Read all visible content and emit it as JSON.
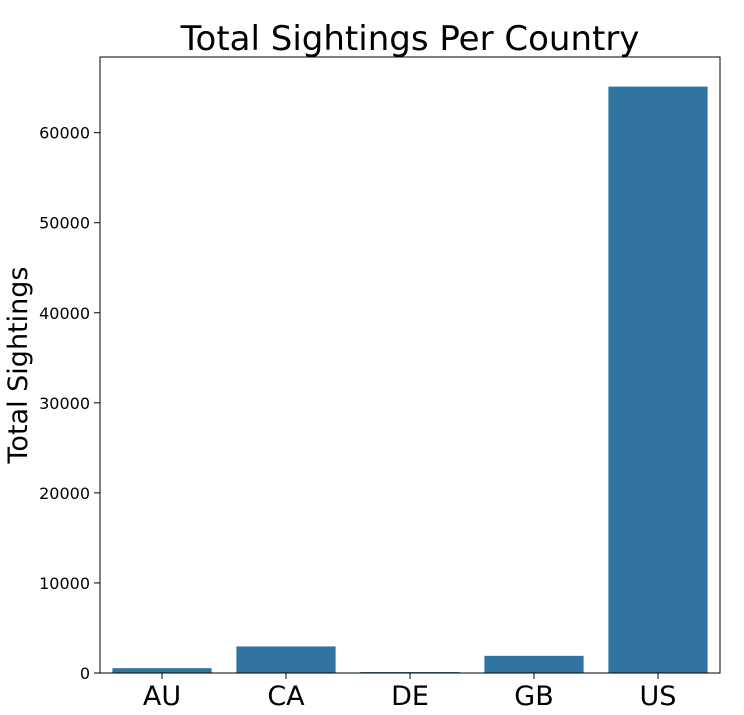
{
  "chart_data": {
    "type": "bar",
    "title": "Total Sightings Per Country",
    "xlabel": "",
    "ylabel": "Total Sightings",
    "categories": [
      "AU",
      "CA",
      "DE",
      "GB",
      "US"
    ],
    "values": [
      538,
      2948,
      105,
      1905,
      65114
    ],
    "ylim": [
      0,
      68400
    ],
    "yticks": [
      0,
      10000,
      20000,
      30000,
      40000,
      50000,
      60000
    ],
    "ytick_labels": [
      "0",
      "10000",
      "20000",
      "30000",
      "40000",
      "50000",
      "60000"
    ],
    "grid": false,
    "legend": "none",
    "bar_color": "#3274a1"
  }
}
